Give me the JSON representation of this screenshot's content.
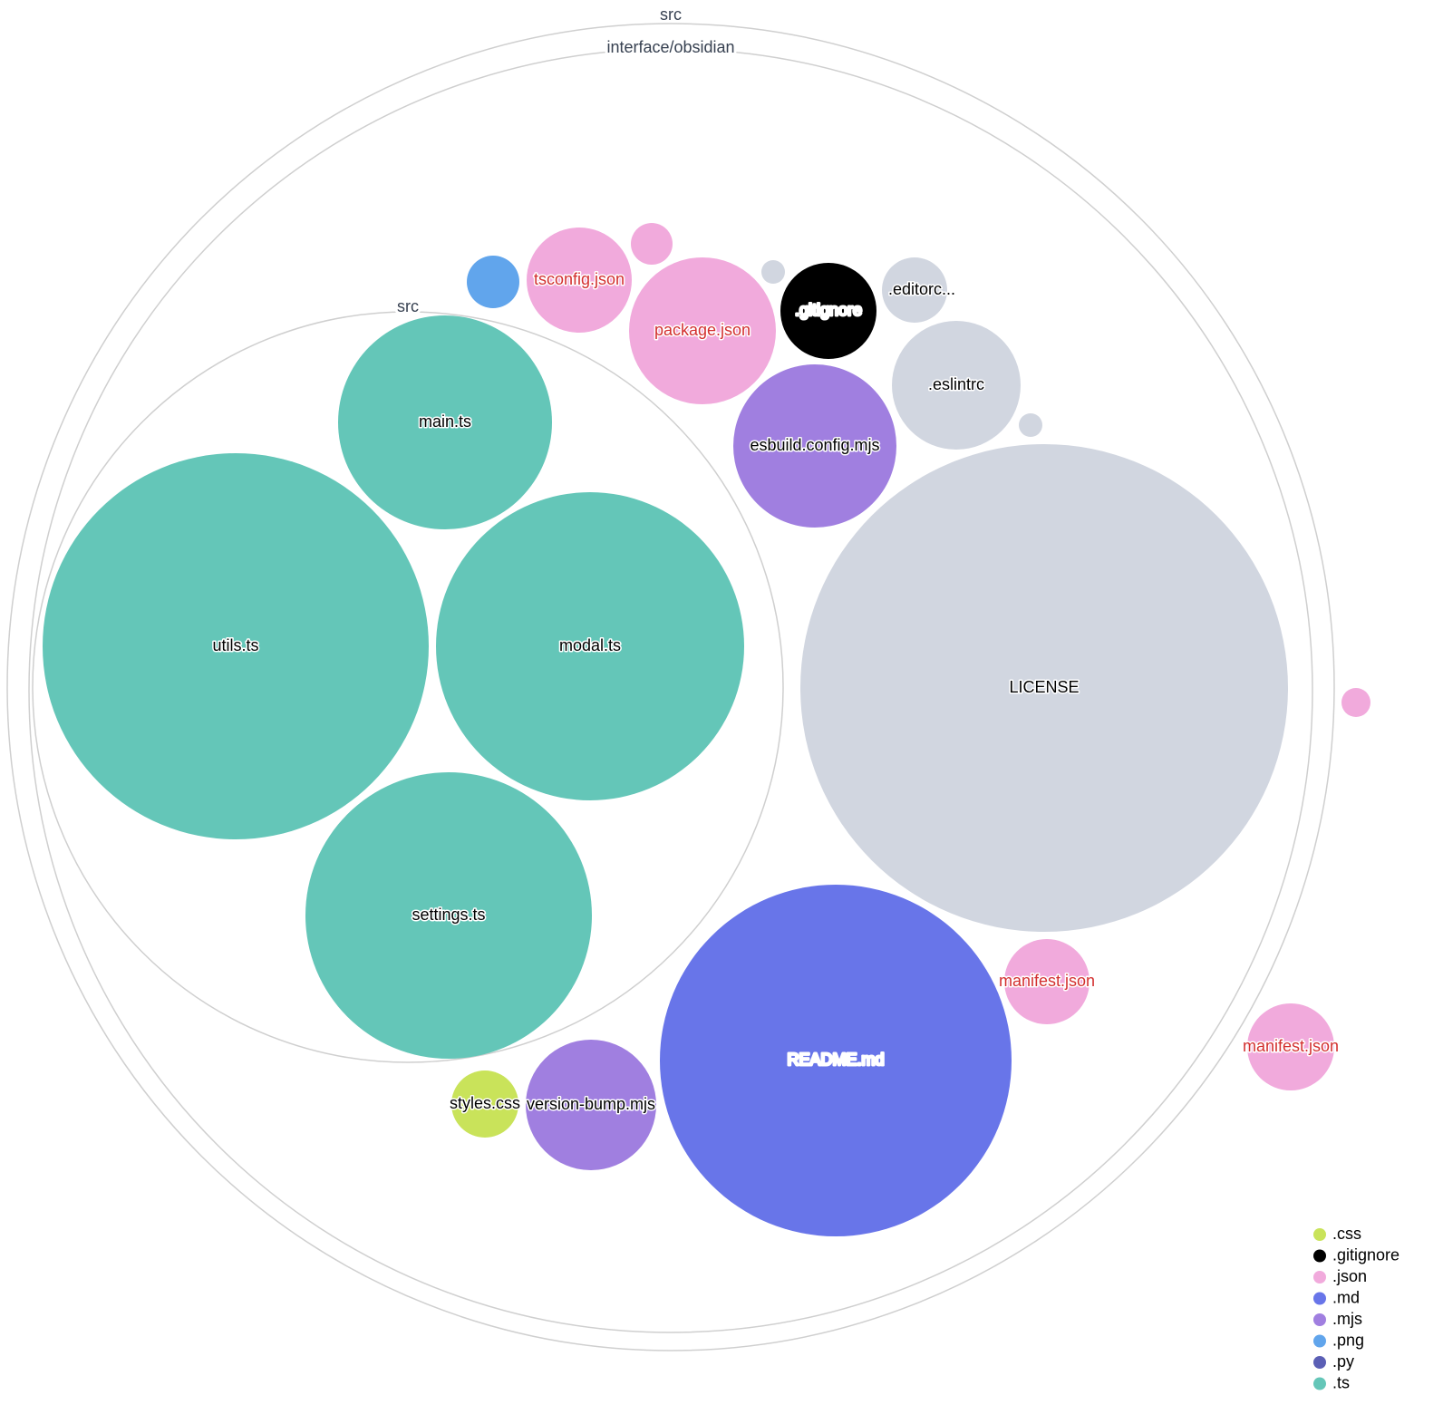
{
  "folders": [
    {
      "name": "src"
    },
    {
      "name": "interface/obsidian"
    },
    {
      "name": "src"
    }
  ],
  "files": [
    {
      "name": "utils.ts",
      "ext": ".ts",
      "label": "utils.ts"
    },
    {
      "name": "main.ts",
      "ext": ".ts",
      "label": "main.ts"
    },
    {
      "name": "modal.ts",
      "ext": ".ts",
      "label": "modal.ts"
    },
    {
      "name": "settings.ts",
      "ext": ".ts",
      "label": "settings.ts"
    },
    {
      "name": "LICENSE",
      "ext": "",
      "label": "LICENSE"
    },
    {
      "name": "README.md",
      "ext": ".md",
      "label": "README.md"
    },
    {
      "name": "esbuild.config.mjs",
      "ext": ".mjs",
      "label": "esbuild.config.mjs"
    },
    {
      "name": ".eslintrc",
      "ext": "",
      "label": ".eslintrc"
    },
    {
      "name": ".gitignore",
      "ext": ".gitignore",
      "label": ".gitignore"
    },
    {
      "name": ".editorconfig",
      "ext": "",
      "label": ".editorc..."
    },
    {
      "name": "package.json",
      "ext": ".json",
      "label": "package.json"
    },
    {
      "name": "tsconfig.json",
      "ext": ".json",
      "label": "tsconfig.json"
    },
    {
      "name": "",
      "ext": ".json",
      "label": ""
    },
    {
      "name": "",
      "ext": ".png",
      "label": ""
    },
    {
      "name": "",
      "ext": "",
      "label": ""
    },
    {
      "name": "",
      "ext": "",
      "label": ""
    },
    {
      "name": "manifest.json",
      "ext": ".json",
      "label": "manifest.json"
    },
    {
      "name": "manifest.json",
      "ext": ".json",
      "label": "manifest.json"
    },
    {
      "name": "",
      "ext": ".json",
      "label": ""
    },
    {
      "name": "version-bump.mjs",
      "ext": ".mjs",
      "label": "version-bump.mjs"
    },
    {
      "name": "styles.css",
      "ext": ".css",
      "label": "styles.css"
    }
  ],
  "colors": {
    ".css": "#c9e35a",
    ".gitignore": "#000000",
    ".json": "#f1aadc",
    ".md": "#6875e9",
    ".mjs": "#a07fe0",
    ".png": "#61a5ec",
    ".py": "#5b5fb5",
    ".ts": "#64c6b8",
    "": "#d1d6e0"
  },
  "json_label_color": "#d32f2f",
  "legend": [
    {
      "label": ".css",
      "color": "#c9e35a"
    },
    {
      "label": ".gitignore",
      "color": "#000000"
    },
    {
      "label": ".json",
      "color": "#f1aadc"
    },
    {
      "label": ".md",
      "color": "#6875e9"
    },
    {
      "label": ".mjs",
      "color": "#a07fe0"
    },
    {
      "label": ".png",
      "color": "#61a5ec"
    },
    {
      "label": ".py",
      "color": "#5b5fb5"
    },
    {
      "label": ".ts",
      "color": "#64c6b8"
    }
  ]
}
